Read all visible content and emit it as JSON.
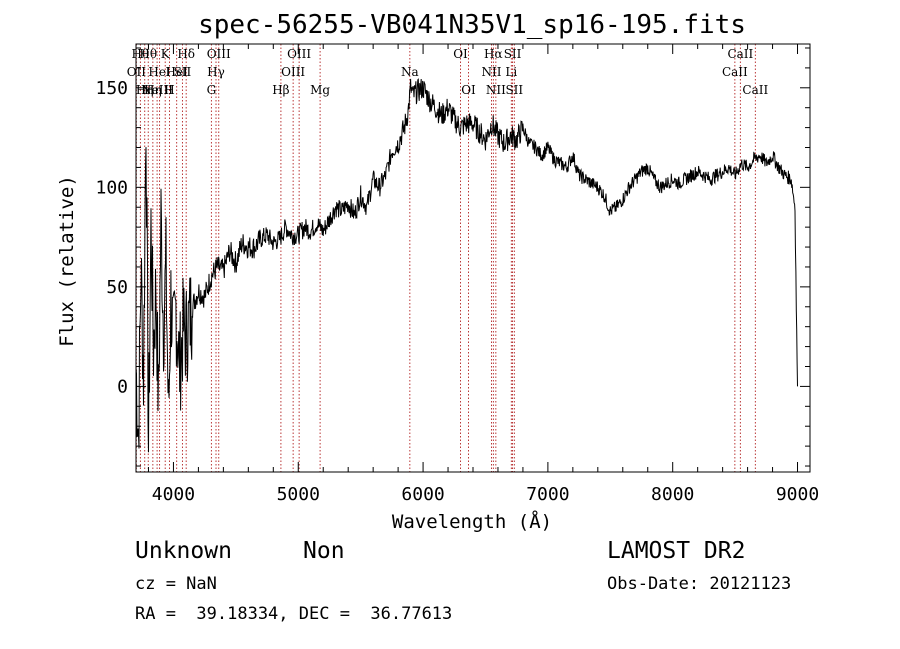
{
  "chart_data": {
    "type": "line",
    "title": "spec-56255-VB041N35V1_sp16-195.fits",
    "xlabel": "Wavelength (Å)",
    "ylabel": "Flux (relative)",
    "xlim": [
      3700,
      9100
    ],
    "ylim": [
      -43,
      172
    ],
    "xticks": [
      4000,
      5000,
      6000,
      7000,
      8000,
      9000
    ],
    "yticks": [
      0,
      50,
      100,
      150
    ],
    "grid": false,
    "series": [
      {
        "color": "#000000",
        "x": [
          3700,
          3720,
          3740,
          3760,
          3780,
          3800,
          3820,
          3840,
          3860,
          3880,
          3900,
          3920,
          3940,
          3960,
          3980,
          4000,
          4020,
          4050,
          4080,
          4100,
          4150,
          4200,
          4250,
          4300,
          4350,
          4400,
          4450,
          4500,
          4550,
          4600,
          4650,
          4700,
          4750,
          4800,
          4850,
          4900,
          4950,
          5000,
          5050,
          5100,
          5150,
          5200,
          5250,
          5300,
          5350,
          5400,
          5450,
          5500,
          5550,
          5600,
          5650,
          5700,
          5750,
          5800,
          5850,
          5880,
          5900,
          5920,
          5950,
          6000,
          6050,
          6100,
          6150,
          6200,
          6250,
          6300,
          6350,
          6400,
          6450,
          6500,
          6550,
          6600,
          6650,
          6700,
          6750,
          6800,
          6850,
          6900,
          6950,
          7000,
          7050,
          7100,
          7150,
          7200,
          7250,
          7300,
          7350,
          7400,
          7450,
          7500,
          7550,
          7600,
          7650,
          7700,
          7750,
          7800,
          7850,
          7900,
          7950,
          8000,
          8050,
          8100,
          8150,
          8200,
          8250,
          8300,
          8350,
          8400,
          8450,
          8500,
          8550,
          8600,
          8650,
          8700,
          8750,
          8800,
          8850,
          8900,
          8950,
          8980,
          8990,
          9000
        ],
        "values": [
          10,
          -25,
          60,
          5,
          138,
          -30,
          80,
          20,
          50,
          -10,
          85,
          30,
          60,
          -15,
          45,
          20,
          40,
          10,
          30,
          25,
          40,
          48,
          45,
          55,
          60,
          58,
          68,
          62,
          72,
          70,
          70,
          74,
          76,
          72,
          74,
          80,
          76,
          76,
          80,
          78,
          82,
          78,
          84,
          90,
          88,
          92,
          86,
          96,
          90,
          104,
          100,
          106,
          118,
          122,
          130,
          138,
          150,
          146,
          148,
          150,
          144,
          140,
          136,
          140,
          134,
          130,
          132,
          132,
          128,
          124,
          132,
          126,
          122,
          126,
          124,
          130,
          122,
          120,
          116,
          120,
          114,
          112,
          110,
          116,
          106,
          104,
          102,
          100,
          96,
          88,
          90,
          94,
          100,
          104,
          108,
          110,
          104,
          100,
          102,
          104,
          102,
          104,
          106,
          108,
          106,
          104,
          106,
          108,
          110,
          106,
          112,
          110,
          114,
          116,
          112,
          116,
          110,
          106,
          104,
          90,
          40,
          0
        ]
      }
    ],
    "lines": [
      {
        "x": 3703,
        "label": "OII",
        "row": 1
      },
      {
        "x": 3735,
        "label": "Hθ",
        "row": 0
      },
      {
        "x": 3770,
        "label": "Hη",
        "row": 2
      },
      {
        "x": 3798,
        "label": "Hθ",
        "row": 0
      },
      {
        "x": 3835,
        "label": "Hη",
        "row": 2
      },
      {
        "x": 3869,
        "label": "NeIII",
        "row": 2
      },
      {
        "x": 3889,
        "label": "HeI",
        "row": 1
      },
      {
        "x": 3934,
        "label": "K",
        "row": 0
      },
      {
        "x": 3968,
        "label": "H",
        "row": 2
      },
      {
        "x": 4026,
        "label": "HeI",
        "row": 1
      },
      {
        "x": 4072,
        "label": "SII",
        "row": 1
      },
      {
        "x": 4102,
        "label": "Hδ",
        "row": 0
      },
      {
        "x": 4304,
        "label": "G",
        "row": 2
      },
      {
        "x": 4341,
        "label": "Hγ",
        "row": 1
      },
      {
        "x": 4363,
        "label": "OIII",
        "row": 0
      },
      {
        "x": 4861,
        "label": "Hβ",
        "row": 2
      },
      {
        "x": 4959,
        "label": "OIII",
        "row": 1
      },
      {
        "x": 5007,
        "label": "OIII",
        "row": 0
      },
      {
        "x": 5175,
        "label": "Mg",
        "row": 2
      },
      {
        "x": 5894,
        "label": "Na",
        "row": 1
      },
      {
        "x": 6300,
        "label": "OI",
        "row": 0
      },
      {
        "x": 6364,
        "label": "OI",
        "row": 2
      },
      {
        "x": 6548,
        "label": "NII",
        "row": 1
      },
      {
        "x": 6563,
        "label": "Hα",
        "row": 0
      },
      {
        "x": 6583,
        "label": "NII",
        "row": 2
      },
      {
        "x": 6707,
        "label": "Li",
        "row": 1
      },
      {
        "x": 6717,
        "label": "SII",
        "row": 0
      },
      {
        "x": 6731,
        "label": "SII",
        "row": 2
      },
      {
        "x": 8498,
        "label": "CaII",
        "row": 1
      },
      {
        "x": 8542,
        "label": "CaII",
        "row": 0
      },
      {
        "x": 8662,
        "label": "CaII",
        "row": 2
      }
    ]
  },
  "footer": {
    "class_label": "Unknown",
    "subclass_label": "Non",
    "survey_label": "LAMOST DR2",
    "redshift_text": "cz = NaN",
    "obs_date_text": "Obs-Date: 20121123",
    "coords_text": "RA =  39.18334, DEC =  36.77613"
  }
}
